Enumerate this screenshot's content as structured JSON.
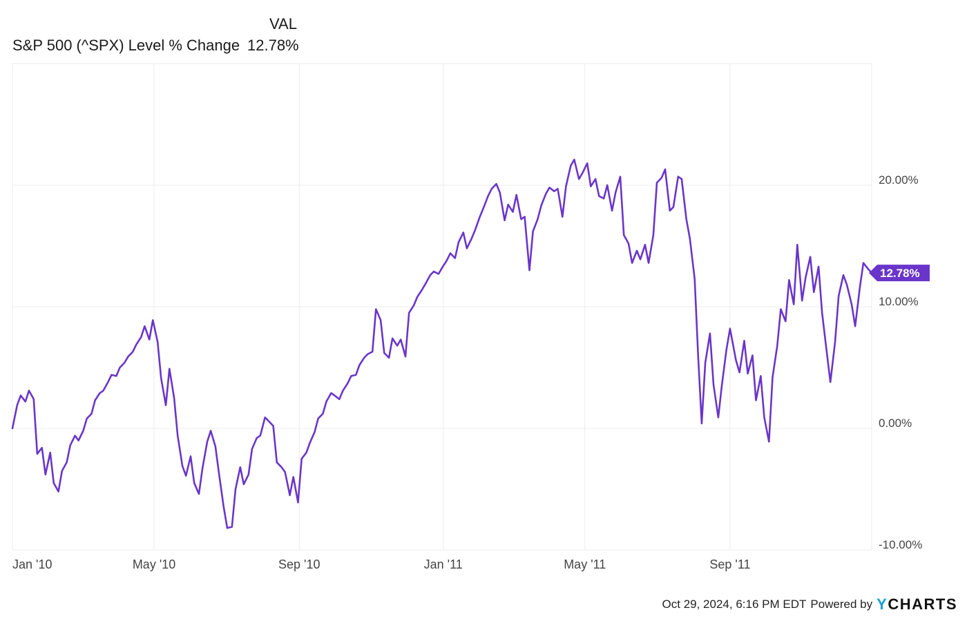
{
  "legend": {
    "column_header": "VAL",
    "series_label": "S&P 500 (^SPX) Level % Change",
    "series_value": "12.78%"
  },
  "footer": {
    "timestamp": "Oct 29, 2024, 6:16 PM EDT",
    "powered_by": "Powered by",
    "brand_initial": "Y",
    "brand_rest": "CHARTS"
  },
  "colors": {
    "line": "#6a35c9",
    "grid": "#ececec",
    "axis_text": "#444444",
    "badge_text": "#ffffff"
  },
  "chart_data": {
    "type": "line",
    "title": "",
    "xlabel": "",
    "ylabel": "",
    "x_ticks": [
      "Jan '10",
      "May '10",
      "Sep '10",
      "Jan '11",
      "May '11",
      "Sep '11"
    ],
    "x_tick_dates": [
      "2010-01-01",
      "2010-05-01",
      "2010-09-01",
      "2011-01-01",
      "2011-05-01",
      "2011-09-01"
    ],
    "x_range": [
      "2010-01-01",
      "2011-12-30"
    ],
    "y_ticks": [
      -10,
      0,
      10,
      20
    ],
    "y_tick_labels": [
      "-10.00%",
      "0.00%",
      "10.00%",
      "20.00%"
    ],
    "ylim": [
      -10,
      30
    ],
    "grid": true,
    "last_value_label": "12.78%",
    "series": [
      {
        "points": [
          [
            "2010-01-01",
            0.0
          ],
          [
            "2010-01-05",
            1.9
          ],
          [
            "2010-01-08",
            2.7
          ],
          [
            "2010-01-12",
            2.2
          ],
          [
            "2010-01-15",
            3.1
          ],
          [
            "2010-01-19",
            2.4
          ],
          [
            "2010-01-22",
            -2.1
          ],
          [
            "2010-01-26",
            -1.6
          ],
          [
            "2010-01-29",
            -3.8
          ],
          [
            "2010-02-02",
            -2.0
          ],
          [
            "2010-02-05",
            -4.5
          ],
          [
            "2010-02-09",
            -5.2
          ],
          [
            "2010-02-12",
            -3.5
          ],
          [
            "2010-02-16",
            -2.8
          ],
          [
            "2010-02-19",
            -1.4
          ],
          [
            "2010-02-23",
            -0.6
          ],
          [
            "2010-02-26",
            -1.0
          ],
          [
            "2010-03-02",
            -0.2
          ],
          [
            "2010-03-05",
            0.8
          ],
          [
            "2010-03-09",
            1.2
          ],
          [
            "2010-03-12",
            2.3
          ],
          [
            "2010-03-16",
            2.9
          ],
          [
            "2010-03-19",
            3.1
          ],
          [
            "2010-03-23",
            3.8
          ],
          [
            "2010-03-26",
            4.4
          ],
          [
            "2010-03-30",
            4.3
          ],
          [
            "2010-04-02",
            5.0
          ],
          [
            "2010-04-06",
            5.4
          ],
          [
            "2010-04-09",
            5.9
          ],
          [
            "2010-04-13",
            6.3
          ],
          [
            "2010-04-16",
            6.9
          ],
          [
            "2010-04-20",
            7.5
          ],
          [
            "2010-04-23",
            8.4
          ],
          [
            "2010-04-27",
            7.3
          ],
          [
            "2010-04-30",
            8.9
          ],
          [
            "2010-05-04",
            7.1
          ],
          [
            "2010-05-07",
            4.1
          ],
          [
            "2010-05-11",
            1.9
          ],
          [
            "2010-05-14",
            4.9
          ],
          [
            "2010-05-18",
            2.5
          ],
          [
            "2010-05-21",
            -0.6
          ],
          [
            "2010-05-25",
            -3.1
          ],
          [
            "2010-05-28",
            -3.9
          ],
          [
            "2010-06-01",
            -2.3
          ],
          [
            "2010-06-04",
            -4.5
          ],
          [
            "2010-06-08",
            -5.4
          ],
          [
            "2010-06-11",
            -3.3
          ],
          [
            "2010-06-15",
            -1.1
          ],
          [
            "2010-06-18",
            -0.2
          ],
          [
            "2010-06-22",
            -1.5
          ],
          [
            "2010-06-25",
            -3.7
          ],
          [
            "2010-06-29",
            -6.5
          ],
          [
            "2010-07-02",
            -8.2
          ],
          [
            "2010-07-06",
            -8.1
          ],
          [
            "2010-07-09",
            -5.0
          ],
          [
            "2010-07-13",
            -3.2
          ],
          [
            "2010-07-16",
            -4.6
          ],
          [
            "2010-07-20",
            -3.8
          ],
          [
            "2010-07-23",
            -1.7
          ],
          [
            "2010-07-27",
            -0.8
          ],
          [
            "2010-07-30",
            -0.6
          ],
          [
            "2010-08-03",
            0.9
          ],
          [
            "2010-08-06",
            0.6
          ],
          [
            "2010-08-10",
            0.2
          ],
          [
            "2010-08-13",
            -2.8
          ],
          [
            "2010-08-17",
            -3.2
          ],
          [
            "2010-08-20",
            -3.6
          ],
          [
            "2010-08-24",
            -5.5
          ],
          [
            "2010-08-27",
            -4.0
          ],
          [
            "2010-08-31",
            -6.1
          ],
          [
            "2010-09-03",
            -2.5
          ],
          [
            "2010-09-07",
            -2.0
          ],
          [
            "2010-09-10",
            -1.2
          ],
          [
            "2010-09-14",
            -0.3
          ],
          [
            "2010-09-17",
            0.8
          ],
          [
            "2010-09-21",
            1.2
          ],
          [
            "2010-09-24",
            2.2
          ],
          [
            "2010-09-28",
            2.9
          ],
          [
            "2010-10-01",
            2.7
          ],
          [
            "2010-10-05",
            2.4
          ],
          [
            "2010-10-08",
            3.1
          ],
          [
            "2010-10-12",
            3.7
          ],
          [
            "2010-10-15",
            4.3
          ],
          [
            "2010-10-19",
            4.4
          ],
          [
            "2010-10-22",
            5.2
          ],
          [
            "2010-10-26",
            5.8
          ],
          [
            "2010-10-29",
            6.1
          ],
          [
            "2010-11-02",
            6.3
          ],
          [
            "2010-11-05",
            9.8
          ],
          [
            "2010-11-09",
            8.9
          ],
          [
            "2010-11-12",
            6.2
          ],
          [
            "2010-11-16",
            5.8
          ],
          [
            "2010-11-19",
            7.4
          ],
          [
            "2010-11-23",
            6.8
          ],
          [
            "2010-11-26",
            7.3
          ],
          [
            "2010-11-30",
            5.9
          ],
          [
            "2010-12-03",
            9.5
          ],
          [
            "2010-12-07",
            10.1
          ],
          [
            "2010-12-10",
            10.8
          ],
          [
            "2010-12-14",
            11.4
          ],
          [
            "2010-12-17",
            11.9
          ],
          [
            "2010-12-21",
            12.6
          ],
          [
            "2010-12-24",
            12.9
          ],
          [
            "2010-12-28",
            12.7
          ],
          [
            "2010-12-31",
            13.2
          ],
          [
            "2011-01-04",
            13.8
          ],
          [
            "2011-01-07",
            14.4
          ],
          [
            "2011-01-11",
            14.0
          ],
          [
            "2011-01-14",
            15.3
          ],
          [
            "2011-01-18",
            16.1
          ],
          [
            "2011-01-21",
            14.8
          ],
          [
            "2011-01-25",
            15.6
          ],
          [
            "2011-01-28",
            16.3
          ],
          [
            "2011-02-01",
            17.4
          ],
          [
            "2011-02-04",
            18.1
          ],
          [
            "2011-02-08",
            19.1
          ],
          [
            "2011-02-11",
            19.7
          ],
          [
            "2011-02-15",
            20.1
          ],
          [
            "2011-02-18",
            19.4
          ],
          [
            "2011-02-22",
            17.1
          ],
          [
            "2011-02-25",
            18.4
          ],
          [
            "2011-03-01",
            17.8
          ],
          [
            "2011-03-04",
            19.2
          ],
          [
            "2011-03-08",
            17.2
          ],
          [
            "2011-03-11",
            17.4
          ],
          [
            "2011-03-15",
            13.0
          ],
          [
            "2011-03-18",
            16.2
          ],
          [
            "2011-03-22",
            17.2
          ],
          [
            "2011-03-25",
            18.3
          ],
          [
            "2011-03-29",
            19.3
          ],
          [
            "2011-04-01",
            19.8
          ],
          [
            "2011-04-05",
            19.5
          ],
          [
            "2011-04-08",
            19.7
          ],
          [
            "2011-04-12",
            17.4
          ],
          [
            "2011-04-15",
            19.9
          ],
          [
            "2011-04-19",
            21.6
          ],
          [
            "2011-04-22",
            22.1
          ],
          [
            "2011-04-26",
            20.5
          ],
          [
            "2011-04-29",
            21.0
          ],
          [
            "2011-05-03",
            21.8
          ],
          [
            "2011-05-06",
            19.9
          ],
          [
            "2011-05-10",
            20.5
          ],
          [
            "2011-05-13",
            19.1
          ],
          [
            "2011-05-17",
            18.9
          ],
          [
            "2011-05-20",
            20.0
          ],
          [
            "2011-05-24",
            17.9
          ],
          [
            "2011-05-27",
            19.4
          ],
          [
            "2011-05-31",
            20.7
          ],
          [
            "2011-06-03",
            15.9
          ],
          [
            "2011-06-07",
            15.2
          ],
          [
            "2011-06-10",
            13.6
          ],
          [
            "2011-06-14",
            14.6
          ],
          [
            "2011-06-17",
            13.9
          ],
          [
            "2011-06-21",
            15.1
          ],
          [
            "2011-06-24",
            13.6
          ],
          [
            "2011-06-28",
            15.9
          ],
          [
            "2011-07-01",
            20.2
          ],
          [
            "2011-07-05",
            20.6
          ],
          [
            "2011-07-08",
            21.3
          ],
          [
            "2011-07-12",
            17.9
          ],
          [
            "2011-07-15",
            18.2
          ],
          [
            "2011-07-19",
            20.7
          ],
          [
            "2011-07-22",
            20.5
          ],
          [
            "2011-07-26",
            17.2
          ],
          [
            "2011-07-29",
            15.6
          ],
          [
            "2011-08-02",
            12.3
          ],
          [
            "2011-08-05",
            5.9
          ],
          [
            "2011-08-08",
            0.4
          ],
          [
            "2011-08-11",
            5.4
          ],
          [
            "2011-08-15",
            7.8
          ],
          [
            "2011-08-18",
            3.6
          ],
          [
            "2011-08-22",
            0.9
          ],
          [
            "2011-08-25",
            3.5
          ],
          [
            "2011-08-29",
            6.5
          ],
          [
            "2011-09-01",
            8.2
          ],
          [
            "2011-09-06",
            5.6
          ],
          [
            "2011-09-09",
            4.6
          ],
          [
            "2011-09-13",
            7.2
          ],
          [
            "2011-09-16",
            4.5
          ],
          [
            "2011-09-20",
            6.0
          ],
          [
            "2011-09-23",
            2.3
          ],
          [
            "2011-09-27",
            4.3
          ],
          [
            "2011-09-30",
            0.9
          ],
          [
            "2011-10-04",
            -1.1
          ],
          [
            "2011-10-07",
            4.2
          ],
          [
            "2011-10-11",
            6.8
          ],
          [
            "2011-10-14",
            9.8
          ],
          [
            "2011-10-18",
            8.8
          ],
          [
            "2011-10-21",
            12.2
          ],
          [
            "2011-10-25",
            10.2
          ],
          [
            "2011-10-28",
            15.1
          ],
          [
            "2011-11-01",
            10.5
          ],
          [
            "2011-11-04",
            12.4
          ],
          [
            "2011-11-08",
            14.1
          ],
          [
            "2011-11-11",
            11.2
          ],
          [
            "2011-11-15",
            13.3
          ],
          [
            "2011-11-18",
            9.5
          ],
          [
            "2011-11-22",
            6.2
          ],
          [
            "2011-11-25",
            3.8
          ],
          [
            "2011-11-29",
            7.1
          ],
          [
            "2011-12-02",
            10.9
          ],
          [
            "2011-12-06",
            12.6
          ],
          [
            "2011-12-09",
            11.8
          ],
          [
            "2011-12-13",
            10.2
          ],
          [
            "2011-12-16",
            8.4
          ],
          [
            "2011-12-20",
            11.6
          ],
          [
            "2011-12-23",
            13.6
          ],
          [
            "2011-12-27",
            13.1
          ],
          [
            "2011-12-30",
            12.78
          ]
        ]
      }
    ]
  }
}
